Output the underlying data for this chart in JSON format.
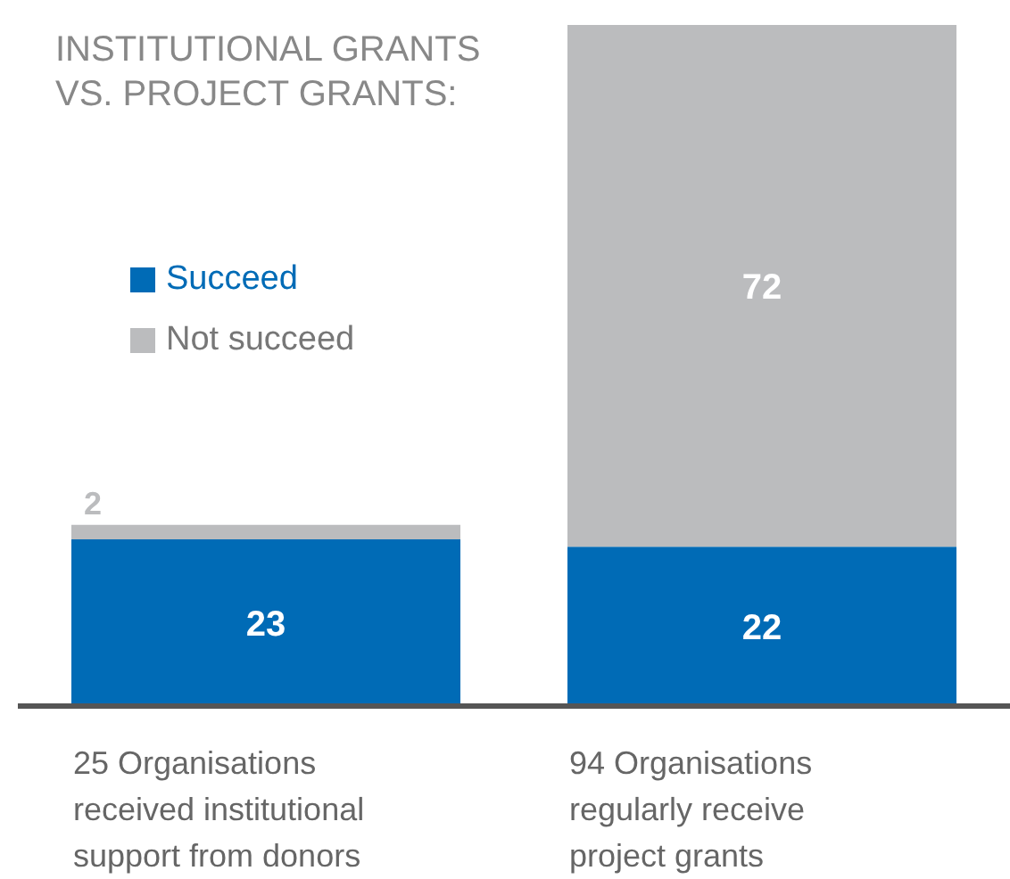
{
  "chart_data": {
    "type": "bar",
    "title": "INSTITUTIONAL GRANTS\nVS. PROJECT GRANTS:",
    "categories": [
      "25 Organisations received institutional support from donors",
      "94 Organisations regularly receive project grants"
    ],
    "series": [
      {
        "name": "Succeed",
        "color": "#006bb6",
        "values": [
          23,
          22
        ]
      },
      {
        "name": "Not succeed",
        "color": "#bbbcbe",
        "values": [
          2,
          72
        ]
      }
    ],
    "stacked": true,
    "data_labels": true,
    "legend": "top left",
    "grid": false
  }
}
